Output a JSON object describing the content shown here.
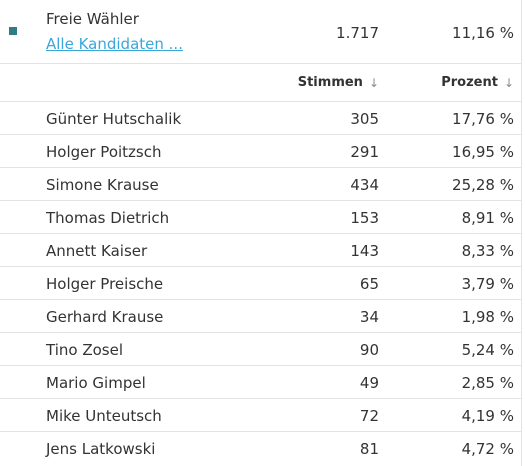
{
  "colors": {
    "party_marker": "#2e7d86",
    "link": "#3ba7d8",
    "text": "#333333",
    "divider": "#e3e3e3"
  },
  "party": {
    "name": "Freie Wähler",
    "link_label": "Alle Kandidaten ...",
    "votes": "1.717",
    "percent": "11,16 %"
  },
  "table": {
    "headers": {
      "votes": "Stimmen",
      "percent": "Prozent",
      "sort_icon": "arrow-down-icon"
    },
    "rows": [
      {
        "name": "Günter Hutschalik",
        "votes": "305",
        "percent": "17,76 %"
      },
      {
        "name": "Holger Poitzsch",
        "votes": "291",
        "percent": "16,95 %"
      },
      {
        "name": "Simone Krause",
        "votes": "434",
        "percent": "25,28 %"
      },
      {
        "name": "Thomas Dietrich",
        "votes": "153",
        "percent": "8,91 %"
      },
      {
        "name": "Annett Kaiser",
        "votes": "143",
        "percent": "8,33 %"
      },
      {
        "name": "Holger Preische",
        "votes": "65",
        "percent": "3,79 %"
      },
      {
        "name": "Gerhard Krause",
        "votes": "34",
        "percent": "1,98 %"
      },
      {
        "name": "Tino Zosel",
        "votes": "90",
        "percent": "5,24 %"
      },
      {
        "name": "Mario Gimpel",
        "votes": "49",
        "percent": "2,85 %"
      },
      {
        "name": "Mike Unteutsch",
        "votes": "72",
        "percent": "4,19 %"
      },
      {
        "name": "Jens Latkowski",
        "votes": "81",
        "percent": "4,72 %"
      }
    ]
  }
}
